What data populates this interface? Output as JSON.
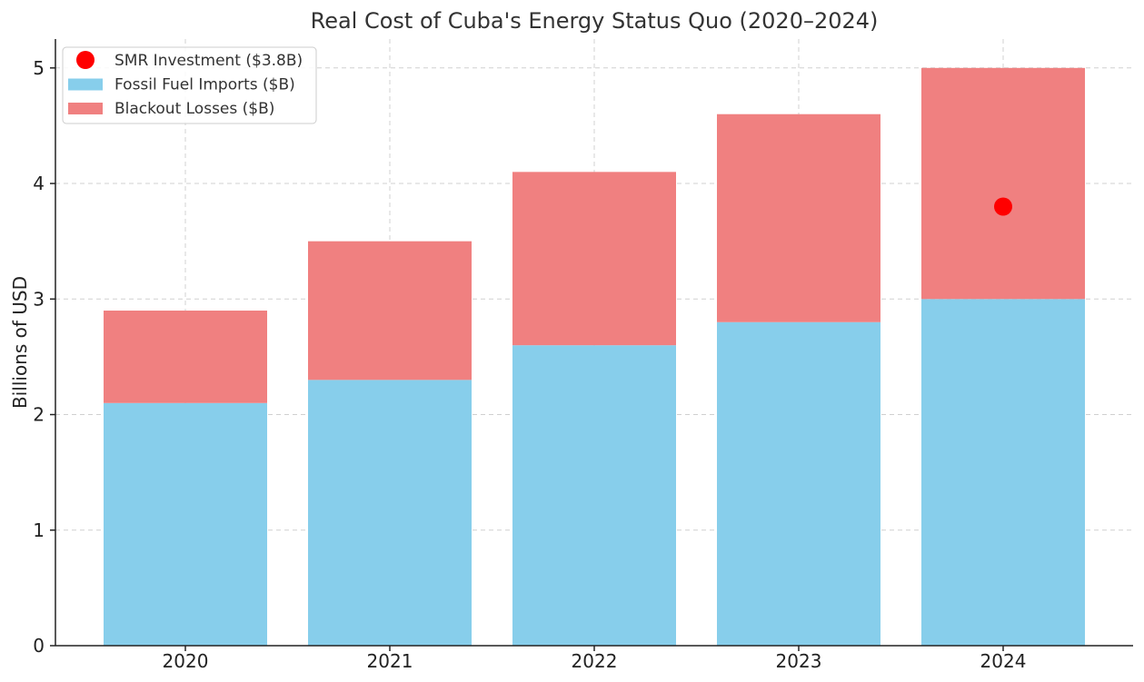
{
  "chart_data": {
    "type": "bar",
    "stacked": true,
    "title": "Real Cost of Cuba's Energy Status Quo (2020–2024)",
    "xlabel": "",
    "ylabel": "Billions of USD",
    "categories": [
      "2020",
      "2021",
      "2022",
      "2023",
      "2024"
    ],
    "ylim": [
      0,
      5.25
    ],
    "yticks": [
      0,
      1,
      2,
      3,
      4,
      5
    ],
    "grid": true,
    "legend_position": "top-left",
    "series": [
      {
        "name": "Fossil Fuel Imports ($B)",
        "values": [
          2.1,
          2.3,
          2.6,
          2.8,
          3.0
        ],
        "color": "#87ceeb"
      },
      {
        "name": "Blackout Losses ($B)",
        "values": [
          0.8,
          1.2,
          1.5,
          1.8,
          2.0
        ],
        "color": "#f08080"
      }
    ],
    "markers": [
      {
        "name": "SMR Investment ($3.8B)",
        "category": "2024",
        "value": 3.8,
        "color": "#ff0000"
      }
    ]
  }
}
